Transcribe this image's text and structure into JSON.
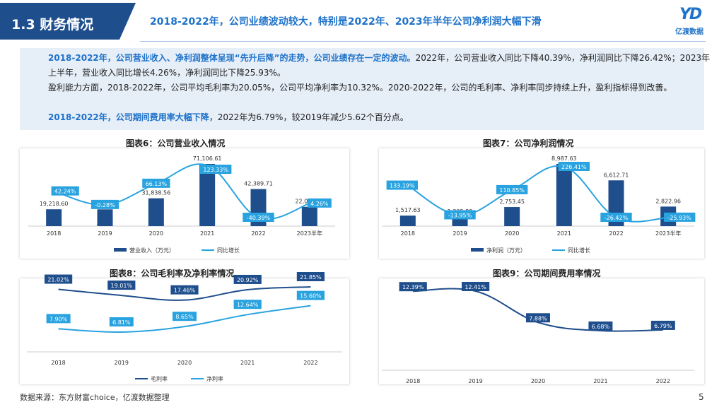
{
  "section": {
    "title": "1.3 财务情况"
  },
  "headline": "2018-2022年，公司业绩波动较大，特别是2022年、2023年半年公司净利润大幅下滑",
  "logo": {
    "text": "亿渡数据",
    "mark": "YD"
  },
  "summary": {
    "p1_highlight": "2018-2022年，公司营业收入、净利润整体呈现“先升后降”的走势，公司业绩存在一定的波动。",
    "p1_rest": "2022年，公司营业收入同比下降40.39%，净利润同比下降26.42%；2023年上半年，营业收入同比增长4.26%，净利润同比下降25.93%。",
    "p2": "盈利能力方面，2018-2022年，公司平均毛利率为20.05%，公司平均净利率为10.32%。2020-2022年，公司的毛利率、净利率同步持续上升，盈利指标得到改善。",
    "p3_highlight": "2018-2022年，公司期间费用率大幅下降",
    "p3_rest": "，2022年为6.79%，较2019年减少5.62个百分点。"
  },
  "source": "数据来源：东方财富choice，亿渡数据整理",
  "page_number": "5",
  "colors": {
    "bar": "#1f4e8c",
    "line": "#29a3e0",
    "dark_line": "#1f4e8c"
  },
  "chart_data": [
    {
      "type": "bar",
      "title": "图表6：公司营业收入情况",
      "categories": [
        "2018",
        "2019",
        "2020",
        "2021",
        "2022",
        "2023半年"
      ],
      "series": [
        {
          "name": "营业收入（万元）",
          "values": [
            19218.6,
            19165.25,
            31838.56,
            71106.61,
            42389.71,
            22066.71
          ],
          "labels": [
            "19,218.60",
            "19,165.25",
            "31,838.56",
            "71,106.61",
            "42,389.71",
            "22,066.71"
          ]
        },
        {
          "name": "同比增长",
          "type": "line",
          "values": [
            42.24,
            -0.28,
            66.13,
            123.33,
            -40.39,
            4.26
          ],
          "labels": [
            "42.24%",
            "-0.28%",
            "66.13%",
            "123.33%",
            "-40.39%",
            "4.26%"
          ]
        }
      ],
      "legend": "bottom"
    },
    {
      "type": "bar",
      "title": "图表7：公司净利润情况",
      "categories": [
        "2018",
        "2019",
        "2020",
        "2021",
        "2022",
        "2023半年"
      ],
      "series": [
        {
          "name": "净利润（万元）",
          "values": [
            1517.63,
            1305.89,
            2753.45,
            8987.63,
            6612.71,
            2822.96
          ],
          "labels": [
            "1,517.63",
            "1,305.89",
            "2,753.45",
            "8,987.63",
            "6,612.71",
            "2,822.96"
          ]
        },
        {
          "name": "同比增长",
          "type": "line",
          "values": [
            133.19,
            -13.95,
            110.85,
            226.41,
            -26.42,
            -25.93
          ],
          "labels": [
            "133.19%",
            "-13.95%",
            "110.85%",
            "226.41%",
            "-26.42%",
            "-25.93%"
          ]
        }
      ],
      "legend": "bottom"
    },
    {
      "type": "line",
      "title": "图表8：公司毛利率及净利率情况",
      "categories": [
        "2018",
        "2019",
        "2020",
        "2021",
        "2022"
      ],
      "series": [
        {
          "name": "毛利率",
          "values": [
            21.02,
            19.01,
            17.46,
            20.92,
            21.85
          ],
          "labels": [
            "21.02%",
            "19.01%",
            "17.46%",
            "20.92%",
            "21.85%"
          ]
        },
        {
          "name": "净利率",
          "values": [
            7.9,
            6.81,
            8.65,
            12.64,
            15.6
          ],
          "labels": [
            "7.90%",
            "6.81%",
            "8.65%",
            "12.64%",
            "15.60%"
          ]
        }
      ],
      "legend": "bottom"
    },
    {
      "type": "line",
      "title": "图表9：公司期间费用率情况",
      "categories": [
        "2018",
        "2019",
        "2020",
        "2021",
        "2022"
      ],
      "series": [
        {
          "values": [
            12.39,
            12.41,
            7.88,
            6.68,
            6.79
          ],
          "labels": [
            "12.39%",
            "12.41%",
            "7.88%",
            "6.68%",
            "6.79%"
          ]
        }
      ]
    }
  ]
}
